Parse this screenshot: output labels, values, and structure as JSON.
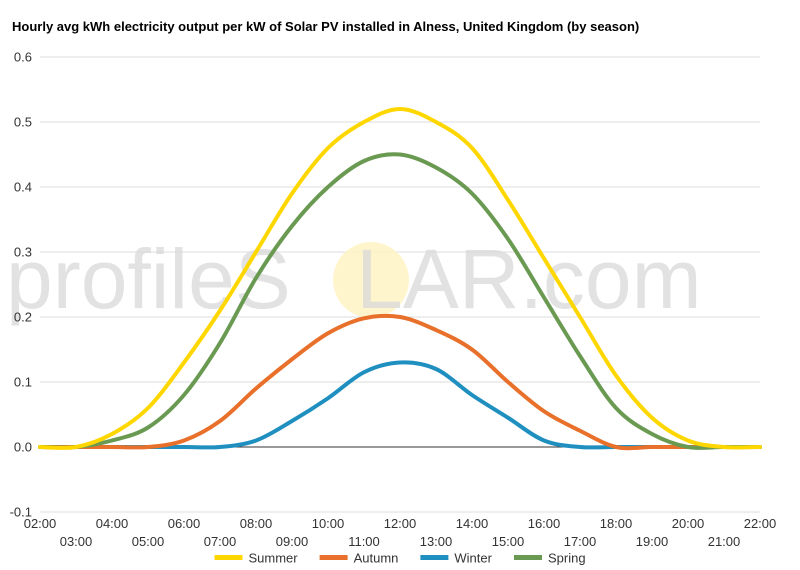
{
  "watermark": {
    "text_before": "profileS",
    "text_sun": "O",
    "text_after": "LAR.com"
  },
  "chart_data": {
    "type": "line",
    "title": "Hourly avg kWh electricity output per kW of Solar PV installed in Alness, United Kingdom (by season)",
    "xlabel": "",
    "ylabel": "",
    "ylim": [
      -0.1,
      0.6
    ],
    "yticks": [
      -0.1,
      0.0,
      0.1,
      0.2,
      0.3,
      0.4,
      0.5,
      0.6
    ],
    "ytick_labels": [
      "-0.1",
      "0.0",
      "0.1",
      "0.2",
      "0.3",
      "0.4",
      "0.5",
      "0.6"
    ],
    "xlim": [
      2,
      22
    ],
    "xticks_even": [
      2,
      4,
      6,
      8,
      10,
      12,
      14,
      16,
      18,
      20,
      22
    ],
    "xtick_labels_even": [
      "02:00",
      "04:00",
      "06:00",
      "08:00",
      "10:00",
      "12:00",
      "14:00",
      "16:00",
      "18:00",
      "20:00",
      "22:00"
    ],
    "xticks_odd": [
      3,
      5,
      7,
      9,
      11,
      13,
      15,
      17,
      19,
      21
    ],
    "xtick_labels_odd": [
      "03:00",
      "05:00",
      "07:00",
      "09:00",
      "11:00",
      "13:00",
      "15:00",
      "17:00",
      "19:00",
      "21:00"
    ],
    "grid": true,
    "legend_position": "bottom",
    "x": [
      2,
      3,
      4,
      5,
      6,
      7,
      8,
      9,
      10,
      11,
      12,
      13,
      14,
      15,
      16,
      17,
      18,
      19,
      20,
      21,
      22
    ],
    "series": [
      {
        "name": "Summer",
        "color": "#ffd700",
        "values": [
          0.0,
          0.0,
          0.02,
          0.06,
          0.13,
          0.21,
          0.3,
          0.39,
          0.46,
          0.5,
          0.52,
          0.5,
          0.46,
          0.38,
          0.29,
          0.2,
          0.11,
          0.045,
          0.01,
          0.0,
          0.0
        ]
      },
      {
        "name": "Autumn",
        "color": "#e8702a",
        "values": [
          0.0,
          0.0,
          0.0,
          0.0,
          0.01,
          0.04,
          0.09,
          0.135,
          0.175,
          0.198,
          0.2,
          0.18,
          0.15,
          0.1,
          0.055,
          0.025,
          0.0,
          0.0,
          0.0,
          0.0,
          0.0
        ]
      },
      {
        "name": "Winter",
        "color": "#1f8fc0",
        "values": [
          0.0,
          0.0,
          0.0,
          0.0,
          0.0,
          0.0,
          0.01,
          0.04,
          0.075,
          0.115,
          0.13,
          0.12,
          0.08,
          0.045,
          0.01,
          0.0,
          0.0,
          0.0,
          0.0,
          0.0,
          0.0
        ]
      },
      {
        "name": "Spring",
        "color": "#6a9a52",
        "values": [
          0.0,
          0.0,
          0.01,
          0.03,
          0.08,
          0.16,
          0.26,
          0.34,
          0.4,
          0.44,
          0.45,
          0.43,
          0.39,
          0.32,
          0.23,
          0.14,
          0.06,
          0.02,
          0.0,
          0.0,
          0.0
        ]
      }
    ]
  }
}
